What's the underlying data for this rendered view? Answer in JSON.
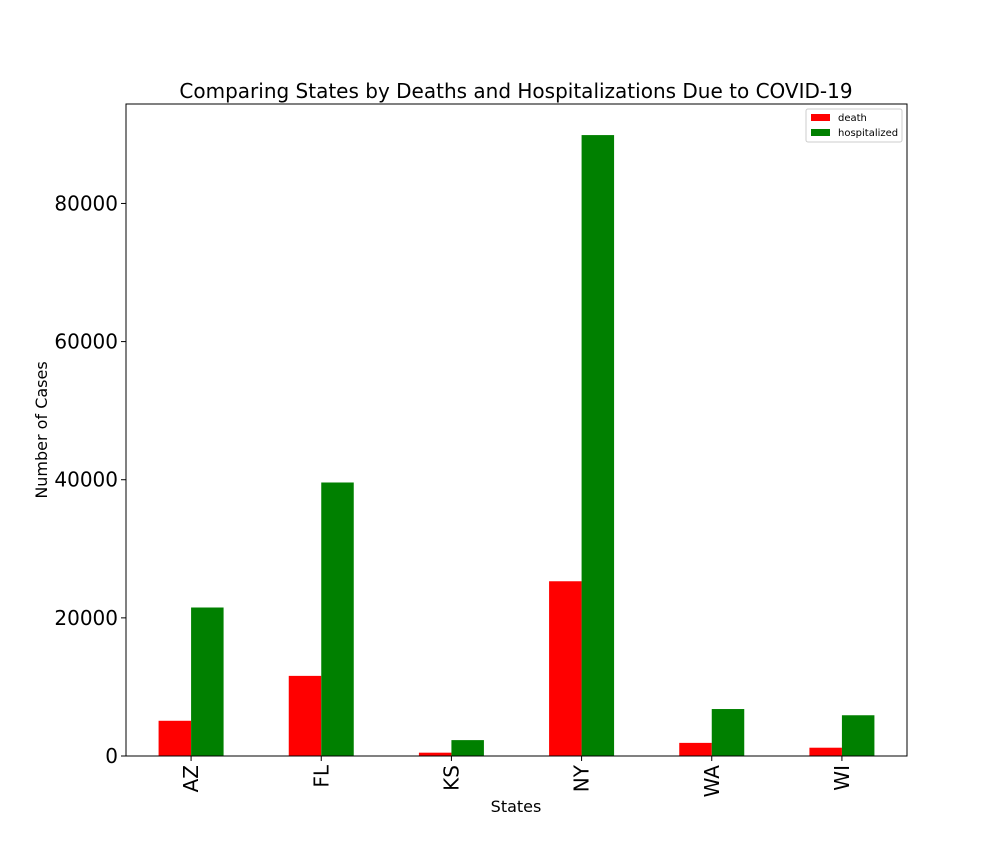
{
  "chart_data": {
    "type": "bar",
    "title": "Comparing States by Deaths and Hospitalizations Due to COVID-19",
    "xlabel": "States",
    "ylabel": "Number of Cases",
    "categories": [
      "AZ",
      "FL",
      "KS",
      "NY",
      "WA",
      "WI"
    ],
    "series": [
      {
        "name": "death",
        "color": "#ff0000",
        "values": [
          5100,
          11600,
          480,
          25300,
          1900,
          1200
        ]
      },
      {
        "name": "hospitalized",
        "color": "#008000",
        "values": [
          21500,
          39600,
          2300,
          89900,
          6800,
          5900
        ]
      }
    ],
    "ylim": [
      0,
      94400
    ],
    "yticks": [
      0,
      20000,
      40000,
      60000,
      80000
    ],
    "grid": false,
    "legend": "top-right"
  }
}
